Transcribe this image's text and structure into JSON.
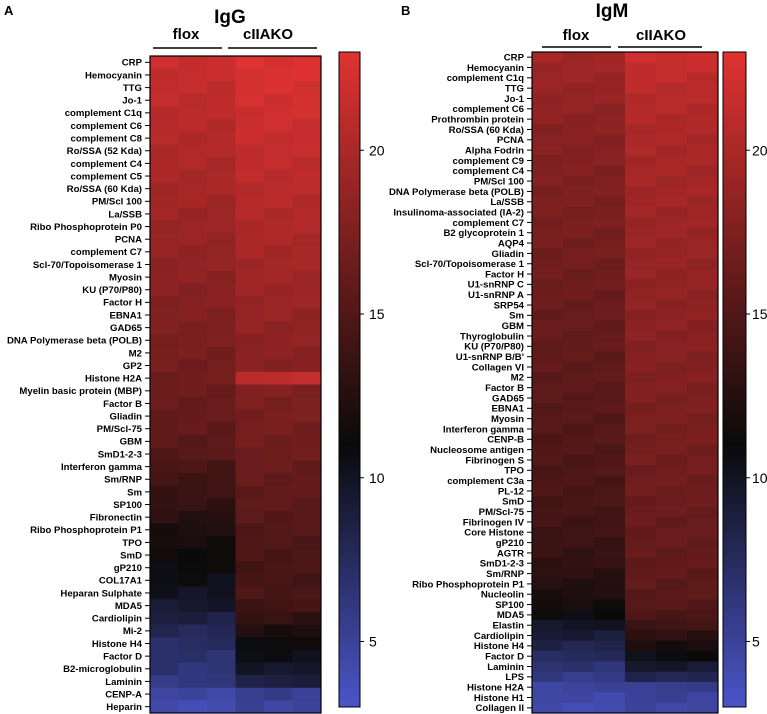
{
  "chart_data": [
    {
      "type": "heatmap",
      "panel": "A",
      "title": "IgG",
      "groups": [
        "flox",
        "cIIAKO"
      ],
      "colorbar": {
        "ticks": [
          5,
          10,
          15,
          20
        ],
        "range": [
          3,
          23
        ],
        "colors": [
          "#4b55c8",
          "#0a0a0a",
          "#e03232"
        ]
      },
      "rows": [
        {
          "label": "CRP",
          "flox": 21.6,
          "ko": 22.6
        },
        {
          "label": "Hemocyanin",
          "flox": 21.4,
          "ko": 22.5
        },
        {
          "label": "TTG",
          "flox": 21.2,
          "ko": 22.3
        },
        {
          "label": "Jo-1",
          "flox": 21.0,
          "ko": 22.1
        },
        {
          "label": "complement C1q",
          "flox": 20.8,
          "ko": 21.9
        },
        {
          "label": "complement C6",
          "flox": 20.6,
          "ko": 21.7
        },
        {
          "label": "complement C8",
          "flox": 20.4,
          "ko": 21.5
        },
        {
          "label": "Ro/SSA (52 Kda)",
          "flox": 20.2,
          "ko": 21.3
        },
        {
          "label": "complement C4",
          "flox": 20.0,
          "ko": 21.1
        },
        {
          "label": "complement C5",
          "flox": 19.8,
          "ko": 20.9
        },
        {
          "label": "Ro/SSA (60 Kda)",
          "flox": 19.6,
          "ko": 20.7
        },
        {
          "label": "PM/Scl 100",
          "flox": 19.4,
          "ko": 20.5
        },
        {
          "label": "La/SSB",
          "flox": 19.2,
          "ko": 20.3
        },
        {
          "label": "Ribo Phosphoprotein P0",
          "flox": 19.0,
          "ko": 20.1
        },
        {
          "label": "PCNA",
          "flox": 18.8,
          "ko": 19.9
        },
        {
          "label": "complement C7",
          "flox": 18.6,
          "ko": 19.7
        },
        {
          "label": "Scl-70/Topoisomerase 1",
          "flox": 18.4,
          "ko": 19.5
        },
        {
          "label": "Myosin",
          "flox": 18.2,
          "ko": 19.3
        },
        {
          "label": "KU (P70/P80)",
          "flox": 18.0,
          "ko": 19.1
        },
        {
          "label": "Factor H",
          "flox": 17.8,
          "ko": 18.9
        },
        {
          "label": "EBNA1",
          "flox": 17.6,
          "ko": 18.7
        },
        {
          "label": "GAD65",
          "flox": 17.4,
          "ko": 18.5
        },
        {
          "label": "DNA Polymerase beta (POLB)",
          "flox": 17.2,
          "ko": 18.3
        },
        {
          "label": "M2",
          "flox": 17.0,
          "ko": 18.1
        },
        {
          "label": "GP2",
          "flox": 16.8,
          "ko": 17.9
        },
        {
          "label": "Histone H2A",
          "flox": 16.6,
          "ko": 21.0
        },
        {
          "label": "Myelin basic protein (MBP)",
          "flox": 16.4,
          "ko": 17.5
        },
        {
          "label": "Factor B",
          "flox": 16.2,
          "ko": 17.3
        },
        {
          "label": "Gliadin",
          "flox": 16.0,
          "ko": 17.1
        },
        {
          "label": "PM/Scl-75",
          "flox": 15.8,
          "ko": 16.9
        },
        {
          "label": "GBM",
          "flox": 15.5,
          "ko": 16.7
        },
        {
          "label": "SmD1-2-3",
          "flox": 15.2,
          "ko": 16.5
        },
        {
          "label": "Interferon gamma",
          "flox": 14.4,
          "ko": 16.2
        },
        {
          "label": "Sm/RNP",
          "flox": 14.0,
          "ko": 16.0
        },
        {
          "label": "Sm",
          "flox": 13.6,
          "ko": 15.8
        },
        {
          "label": "SP100",
          "flox": 13.2,
          "ko": 15.6
        },
        {
          "label": "Fibronectin",
          "flox": 12.6,
          "ko": 15.3
        },
        {
          "label": "Ribo Phosphoprotein P1",
          "flox": 12.0,
          "ko": 15.0
        },
        {
          "label": "TPO",
          "flox": 11.6,
          "ko": 14.8
        },
        {
          "label": "SmD",
          "flox": 11.2,
          "ko": 14.6
        },
        {
          "label": "gP210",
          "flox": 10.8,
          "ko": 14.4
        },
        {
          "label": "COL17A1",
          "flox": 10.4,
          "ko": 14.2
        },
        {
          "label": "Heparan Sulphate",
          "flox": 10.0,
          "ko": 14.5
        },
        {
          "label": "MDA5",
          "flox": 9.4,
          "ko": 14.0
        },
        {
          "label": "Cardiolipin",
          "flox": 8.6,
          "ko": 13.2
        },
        {
          "label": "Mi-2",
          "flox": 7.8,
          "ko": 12.0
        },
        {
          "label": "Histone H4",
          "flox": 7.2,
          "ko": 11.0
        },
        {
          "label": "Factor D",
          "flox": 6.8,
          "ko": 10.4
        },
        {
          "label": "B2-microglobulin",
          "flox": 6.4,
          "ko": 9.6
        },
        {
          "label": "Laminin",
          "flox": 6.0,
          "ko": 8.6
        },
        {
          "label": "CENP-A",
          "flox": 4.6,
          "ko": 5.4
        },
        {
          "label": "Heparin",
          "flox": 4.0,
          "ko": 4.8
        }
      ]
    },
    {
      "type": "heatmap",
      "panel": "B",
      "title": "IgM",
      "groups": [
        "flox",
        "cIIAKO"
      ],
      "colorbar": {
        "ticks": [
          5,
          10,
          15,
          20
        ],
        "range": [
          3,
          23
        ],
        "colors": [
          "#4b55c8",
          "#0a0a0a",
          "#e03232"
        ]
      },
      "rows": [
        {
          "label": "CRP",
          "flox": 19.4,
          "ko": 21.8
        },
        {
          "label": "Hemocyanin",
          "flox": 19.2,
          "ko": 21.4
        },
        {
          "label": "complement C1q",
          "flox": 19.0,
          "ko": 21.0
        },
        {
          "label": "TTG",
          "flox": 18.8,
          "ko": 20.8
        },
        {
          "label": "Jo-1",
          "flox": 18.6,
          "ko": 20.6
        },
        {
          "label": "complement C6",
          "flox": 18.4,
          "ko": 20.4
        },
        {
          "label": "Prothrombin protein",
          "flox": 18.2,
          "ko": 20.2
        },
        {
          "label": "Ro/SSA (60 Kda)",
          "flox": 18.0,
          "ko": 20.0
        },
        {
          "label": "PCNA",
          "flox": 17.9,
          "ko": 19.9
        },
        {
          "label": "Alpha Fodrin",
          "flox": 17.8,
          "ko": 19.8
        },
        {
          "label": "complement C9",
          "flox": 17.7,
          "ko": 19.7
        },
        {
          "label": "complement C4",
          "flox": 17.6,
          "ko": 19.6
        },
        {
          "label": "PM/Scl 100",
          "flox": 17.5,
          "ko": 19.5
        },
        {
          "label": "DNA Polymerase beta (POLB)",
          "flox": 17.4,
          "ko": 19.4
        },
        {
          "label": "La/SSB",
          "flox": 17.3,
          "ko": 19.3
        },
        {
          "label": "Insulinoma-associated (IA-2)",
          "flox": 17.2,
          "ko": 19.2
        },
        {
          "label": "complement C7",
          "flox": 17.1,
          "ko": 19.1
        },
        {
          "label": "B2 glycoprotein 1",
          "flox": 17.0,
          "ko": 19.0
        },
        {
          "label": "AQP4",
          "flox": 16.9,
          "ko": 18.9
        },
        {
          "label": "Gliadin",
          "flox": 16.8,
          "ko": 18.8
        },
        {
          "label": "Scl-70/Topoisomerase 1",
          "flox": 16.7,
          "ko": 18.7
        },
        {
          "label": "Factor H",
          "flox": 16.6,
          "ko": 18.6
        },
        {
          "label": "U1-snRNP C",
          "flox": 16.5,
          "ko": 18.5
        },
        {
          "label": "U1-snRNP A",
          "flox": 16.4,
          "ko": 18.4
        },
        {
          "label": "SRP54",
          "flox": 16.3,
          "ko": 18.3
        },
        {
          "label": "Sm",
          "flox": 16.2,
          "ko": 18.2
        },
        {
          "label": "GBM",
          "flox": 16.1,
          "ko": 18.1
        },
        {
          "label": "Thyroglobulin",
          "flox": 16.0,
          "ko": 18.0
        },
        {
          "label": "KU (P70/P80)",
          "flox": 15.9,
          "ko": 17.9
        },
        {
          "label": "U1-snRNP B/B'",
          "flox": 15.8,
          "ko": 17.8
        },
        {
          "label": "Collagen VI",
          "flox": 15.7,
          "ko": 17.7
        },
        {
          "label": "M2",
          "flox": 15.6,
          "ko": 17.6
        },
        {
          "label": "Factor B",
          "flox": 15.5,
          "ko": 17.5
        },
        {
          "label": "GAD65",
          "flox": 15.4,
          "ko": 17.4
        },
        {
          "label": "EBNA1",
          "flox": 15.3,
          "ko": 17.3
        },
        {
          "label": "Myosin",
          "flox": 15.2,
          "ko": 17.2
        },
        {
          "label": "Interferon gamma",
          "flox": 15.1,
          "ko": 17.1
        },
        {
          "label": "CENP-B",
          "flox": 15.0,
          "ko": 17.0
        },
        {
          "label": "Nucleosome antigen",
          "flox": 14.9,
          "ko": 16.9
        },
        {
          "label": "Fibrinogen S",
          "flox": 14.8,
          "ko": 16.8
        },
        {
          "label": "TPO",
          "flox": 14.7,
          "ko": 16.7
        },
        {
          "label": "complement C3a",
          "flox": 14.6,
          "ko": 16.6
        },
        {
          "label": "PL-12",
          "flox": 14.5,
          "ko": 16.5
        },
        {
          "label": "SmD",
          "flox": 14.4,
          "ko": 16.4
        },
        {
          "label": "PM/Scl-75",
          "flox": 14.2,
          "ko": 16.3
        },
        {
          "label": "Fibrinogen IV",
          "flox": 14.0,
          "ko": 16.2
        },
        {
          "label": "Core Histone",
          "flox": 13.8,
          "ko": 16.1
        },
        {
          "label": "gP210",
          "flox": 13.6,
          "ko": 16.0
        },
        {
          "label": "AGTR",
          "flox": 13.4,
          "ko": 15.9
        },
        {
          "label": "SmD1-2-3",
          "flox": 13.1,
          "ko": 15.8
        },
        {
          "label": "Sm/RNP",
          "flox": 12.8,
          "ko": 15.7
        },
        {
          "label": "Ribo Phosphoprotein P1",
          "flox": 12.4,
          "ko": 15.6
        },
        {
          "label": "Nucleolin",
          "flox": 12.0,
          "ko": 15.4
        },
        {
          "label": "SP100",
          "flox": 11.5,
          "ko": 15.1
        },
        {
          "label": "MDA5",
          "flox": 10.8,
          "ko": 14.6
        },
        {
          "label": "Elastin",
          "flox": 9.8,
          "ko": 13.8
        },
        {
          "label": "Cardiolipin",
          "flox": 9.0,
          "ko": 12.8
        },
        {
          "label": "Histone H4",
          "flox": 8.2,
          "ko": 11.8
        },
        {
          "label": "Factor D",
          "flox": 7.4,
          "ko": 10.6
        },
        {
          "label": "Laminin",
          "flox": 6.6,
          "ko": 9.4
        },
        {
          "label": "LPS",
          "flox": 5.8,
          "ko": 8.0
        },
        {
          "label": "Histone H2A",
          "flox": 4.8,
          "ko": 5.4
        },
        {
          "label": "Histone H1",
          "flox": 4.4,
          "ko": 5.0
        },
        {
          "label": "Collagen II",
          "flox": 4.0,
          "ko": 4.6
        }
      ]
    }
  ]
}
